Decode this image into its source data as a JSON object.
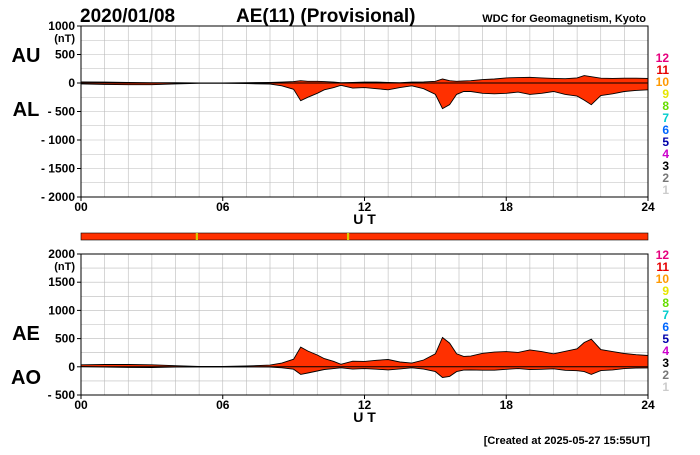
{
  "header": {
    "date": "2020/01/08",
    "title": "AE(11) (Provisional)",
    "credit": "WDC for Geomagnetism, Kyoto"
  },
  "footer": {
    "created": "[Created at 2025-05-27 15:55UT]"
  },
  "colors": {
    "fill": "#ff3000",
    "line": "#000000",
    "grid": "#bbbbbb",
    "status_bar": "#ff3000",
    "status_mark": "#d8c800"
  },
  "count_legend": [
    {
      "label": "12",
      "color": "#e6007e"
    },
    {
      "label": "11",
      "color": "#e60000"
    },
    {
      "label": "10",
      "color": "#ff9900"
    },
    {
      "label": "9",
      "color": "#e6e600"
    },
    {
      "label": "8",
      "color": "#66dd00"
    },
    {
      "label": "7",
      "color": "#00cccc"
    },
    {
      "label": "6",
      "color": "#0066ff"
    },
    {
      "label": "5",
      "color": "#0000aa"
    },
    {
      "label": "4",
      "color": "#cc00cc"
    },
    {
      "label": "3",
      "color": "#000000"
    },
    {
      "label": "2",
      "color": "#777777"
    },
    {
      "label": "1",
      "color": "#cccccc"
    }
  ],
  "status_marks_hours": [
    4.9,
    11.3
  ],
  "chart_data": [
    {
      "type": "area",
      "upper_label": "AU",
      "lower_label": "AL",
      "unit": "(nT)",
      "xlabel": "U T",
      "xlim": [
        0,
        24
      ],
      "ylim": [
        -2000,
        1000
      ],
      "yticks": [
        -2000,
        -1500,
        -1000,
        -500,
        0,
        500,
        1000
      ],
      "xticks": [
        0,
        6,
        12,
        18,
        24
      ],
      "xtick_labels": [
        "00",
        "06",
        "12",
        "18",
        "24"
      ],
      "x": [
        0,
        1,
        2,
        3,
        4,
        5,
        6,
        7,
        8,
        8.5,
        9,
        9.3,
        9.6,
        10,
        10.3,
        10.7,
        11,
        11.5,
        12,
        12.5,
        13,
        13.5,
        14,
        14.5,
        15,
        15.3,
        15.6,
        15.9,
        16.2,
        16.5,
        17,
        17.5,
        18,
        18.5,
        19,
        19.5,
        20,
        20.5,
        21,
        21.3,
        21.6,
        22,
        22.5,
        23,
        23.5,
        24
      ],
      "series": [
        {
          "name": "AU",
          "values": [
            20,
            15,
            10,
            5,
            5,
            0,
            0,
            5,
            10,
            15,
            25,
            40,
            30,
            30,
            25,
            15,
            5,
            10,
            15,
            15,
            10,
            5,
            15,
            20,
            30,
            70,
            40,
            30,
            35,
            40,
            60,
            70,
            90,
            95,
            100,
            90,
            80,
            75,
            90,
            130,
            110,
            85,
            80,
            85,
            85,
            80
          ]
        },
        {
          "name": "AL",
          "values": [
            -15,
            -25,
            -30,
            -30,
            -15,
            -5,
            -5,
            -10,
            -20,
            -50,
            -110,
            -310,
            -250,
            -180,
            -120,
            -80,
            -40,
            -90,
            -80,
            -100,
            -120,
            -80,
            -50,
            -100,
            -200,
            -450,
            -380,
            -200,
            -150,
            -150,
            -180,
            -190,
            -180,
            -160,
            -200,
            -180,
            -150,
            -200,
            -230,
            -300,
            -380,
            -220,
            -190,
            -150,
            -130,
            -120
          ]
        }
      ]
    },
    {
      "type": "area",
      "upper_label": "AE",
      "lower_label": "AO",
      "unit": "(nT)",
      "xlabel": "U T",
      "xlim": [
        0,
        24
      ],
      "ylim": [
        -500,
        2000
      ],
      "yticks": [
        -500,
        0,
        500,
        1000,
        1500,
        2000
      ],
      "xticks": [
        0,
        6,
        12,
        18,
        24
      ],
      "xtick_labels": [
        "00",
        "06",
        "12",
        "18",
        "24"
      ],
      "x": [
        0,
        1,
        2,
        3,
        4,
        5,
        6,
        7,
        8,
        8.5,
        9,
        9.3,
        9.6,
        10,
        10.3,
        10.7,
        11,
        11.5,
        12,
        12.5,
        13,
        13.5,
        14,
        14.5,
        15,
        15.3,
        15.6,
        15.9,
        16.2,
        16.5,
        17,
        17.5,
        18,
        18.5,
        19,
        19.5,
        20,
        20.5,
        21,
        21.3,
        21.6,
        22,
        22.5,
        23,
        23.5,
        24
      ],
      "series": [
        {
          "name": "AE",
          "values": [
            35,
            40,
            40,
            35,
            20,
            5,
            5,
            15,
            30,
            65,
            135,
            350,
            280,
            210,
            145,
            95,
            45,
            100,
            95,
            115,
            130,
            85,
            65,
            120,
            230,
            520,
            420,
            230,
            185,
            190,
            240,
            260,
            270,
            255,
            300,
            270,
            230,
            275,
            320,
            430,
            490,
            305,
            270,
            235,
            215,
            200
          ]
        },
        {
          "name": "AO",
          "values": [
            3,
            -5,
            -10,
            -12,
            -5,
            -2,
            -2,
            -2,
            -5,
            -18,
            -42,
            -135,
            -110,
            -75,
            -48,
            -32,
            -18,
            -40,
            -32,
            -42,
            -55,
            -38,
            -18,
            -40,
            -85,
            -190,
            -170,
            -85,
            -58,
            -55,
            -60,
            -60,
            -45,
            -32,
            -50,
            -45,
            -35,
            -62,
            -70,
            -85,
            -135,
            -68,
            -55,
            -32,
            -22,
            -20
          ]
        }
      ]
    }
  ]
}
